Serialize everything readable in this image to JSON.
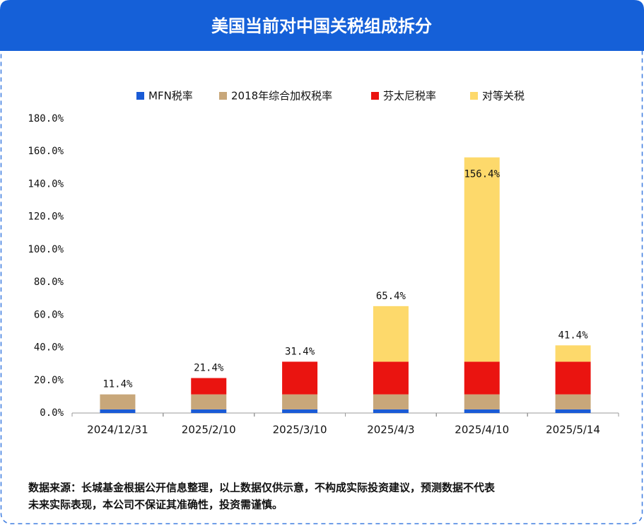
{
  "chart_data": {
    "type": "stacked_bar",
    "title": "美国当前对中国关税组成拆分",
    "categories": [
      "2024/12/31",
      "2025/2/10",
      "2025/3/10",
      "2025/4/3",
      "2025/4/10",
      "2025/5/14"
    ],
    "series": [
      {
        "name": "MFN税率",
        "color": "#1a5bd6",
        "values": [
          2.2,
          2.2,
          2.2,
          2.2,
          2.2,
          2.2
        ]
      },
      {
        "name": "2018年综合加权税率",
        "color": "#c8a77a",
        "values": [
          9.2,
          9.2,
          9.2,
          9.2,
          9.2,
          9.2
        ]
      },
      {
        "name": "芬太尼税率",
        "color": "#ea1410",
        "values": [
          0,
          10,
          20,
          20,
          20,
          20
        ]
      },
      {
        "name": "对等关税",
        "color": "#fdd96b",
        "values": [
          0,
          0,
          0,
          34,
          125,
          10
        ]
      }
    ],
    "totals": [
      11.4,
      21.4,
      31.4,
      65.4,
      156.4,
      41.4
    ],
    "total_labels": [
      "11.4%",
      "21.4%",
      "31.4%",
      "65.4%",
      "156.4%",
      "41.4%"
    ],
    "ylim": [
      0,
      180
    ],
    "yticks": [
      {
        "value": 0,
        "label": "0.0%"
      },
      {
        "value": 20,
        "label": "20.0%"
      },
      {
        "value": 40,
        "label": "40.0%"
      },
      {
        "value": 60,
        "label": "60.0%"
      },
      {
        "value": 80,
        "label": "80.0%"
      },
      {
        "value": 100,
        "label": "100.0%"
      },
      {
        "value": 120,
        "label": "120.0%"
      },
      {
        "value": 140,
        "label": "140.0%"
      },
      {
        "value": 160,
        "label": "160.0%"
      },
      {
        "value": 180,
        "label": "180.0%"
      }
    ],
    "grid": false,
    "notes": [
      "数据来源：长城基金根据公开信息整理，以上数据仅供示意，不构成实际投资建议，预测数据不代表",
      "未来实际表现，本公司不保证其准确性，投资需谨慎。"
    ]
  }
}
